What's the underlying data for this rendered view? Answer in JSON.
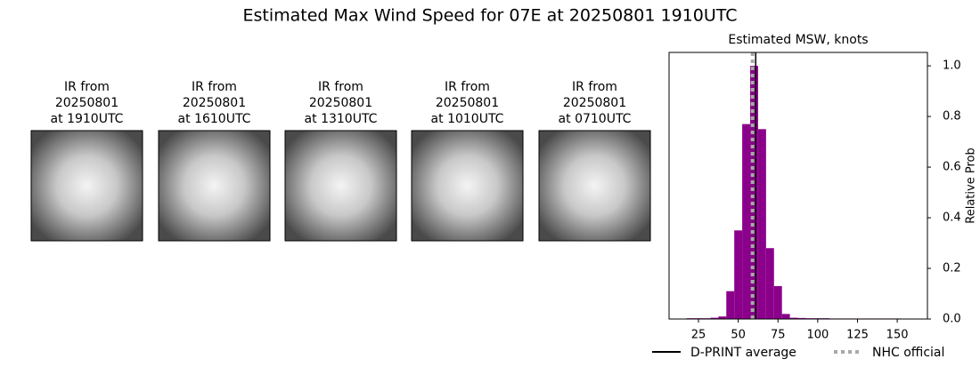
{
  "title": "Estimated Max Wind Speed for 07E at 20250801 1910UTC",
  "panels": [
    {
      "caption": [
        "IR from",
        "20250801",
        "at 1910UTC"
      ]
    },
    {
      "caption": [
        "IR from",
        "20250801",
        "at 1610UTC"
      ]
    },
    {
      "caption": [
        "IR from",
        "20250801",
        "at 1310UTC"
      ]
    },
    {
      "caption": [
        "IR from",
        "20250801",
        "at 1010UTC"
      ]
    },
    {
      "caption": [
        "IR from",
        "20250801",
        "at 0710UTC"
      ]
    }
  ],
  "chart_data": {
    "type": "histogram",
    "title": "Estimated MSW, knots",
    "y_label": "Relative Prob",
    "bins": [
      17.5,
      22.5,
      27.5,
      32.5,
      37.5,
      42.5,
      47.5,
      52.5,
      57.5,
      62.5,
      67.5,
      72.5,
      77.5,
      82.5,
      87.5,
      92.5,
      97.5,
      102.5,
      107.5,
      112.5,
      117.5,
      122.5,
      127.5,
      132.5,
      137.5,
      142.5,
      147.5,
      152.5,
      157.5,
      162.5,
      167.5
    ],
    "values": [
      0.003,
      0.003,
      0.003,
      0.005,
      0.01,
      0.11,
      0.35,
      0.77,
      1.0,
      0.75,
      0.28,
      0.13,
      0.02,
      0.005,
      0.004,
      0.003,
      0.003,
      0.003,
      0.002,
      0.002,
      0.002,
      0.002,
      0.002,
      0.002,
      0.002,
      0.002,
      0.002,
      0.001,
      0.001,
      0.001
    ],
    "color": "#8b008b",
    "xlim": [
      6.5,
      169
    ],
    "ylim": [
      0,
      1.053
    ],
    "xticks": [
      25,
      50,
      75,
      100,
      125,
      150
    ],
    "yticks": [
      {
        "value": 0,
        "label": "0.0"
      },
      0.2,
      0.4,
      0.6,
      0.8,
      {
        "value": 1,
        "label": "1.0"
      }
    ],
    "lines": [
      {
        "name": "D-PRINT average",
        "value": 61,
        "color": "#000000",
        "style": "solid"
      },
      {
        "name": "NHC official",
        "value": 59,
        "color": "#a9a9a9",
        "style": "dotted"
      }
    ]
  }
}
